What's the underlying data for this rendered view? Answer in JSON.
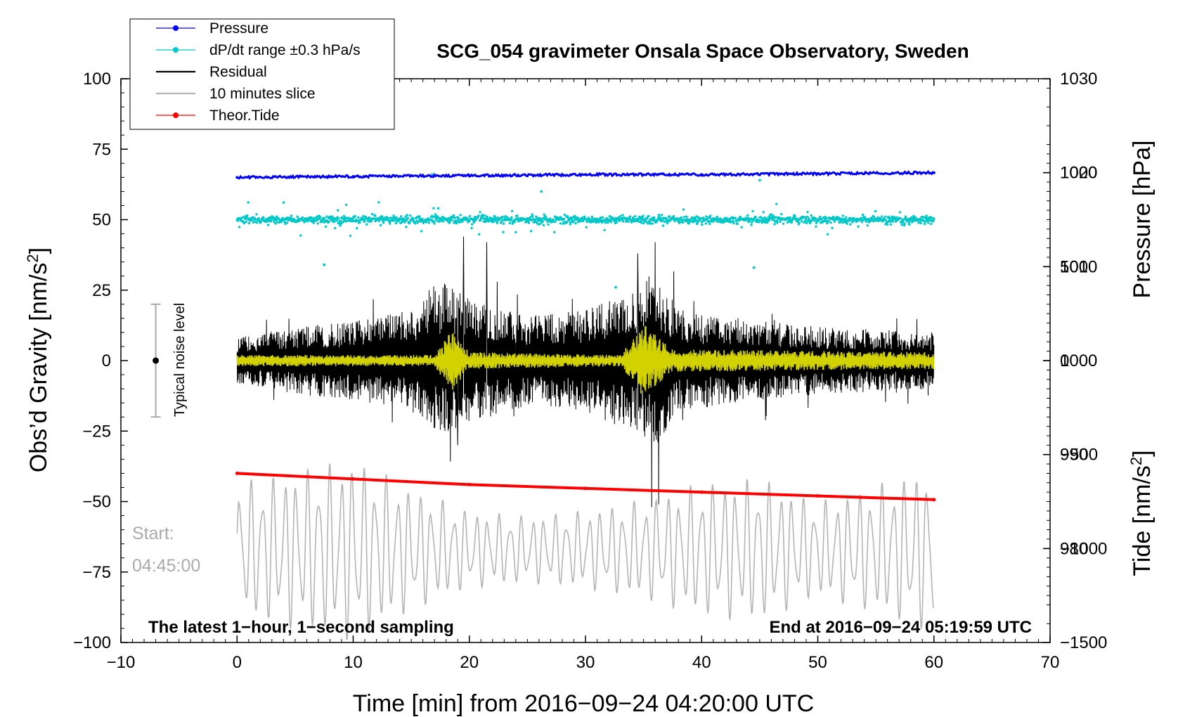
{
  "chart_data": {
    "type": "line",
    "title": "SCG_054 gravimeter Onsala Space Observatory, Sweden",
    "xlabel": "Time [min] from 2016−09−24 04:20:00 UTC",
    "ylabel_left": "Obs’d Gravity [nm/s²]",
    "ylabel_right_top": "Pressure [hPa]",
    "ylabel_right_bottom": "Tide [nm/s²]",
    "xlim": [
      -10,
      70
    ],
    "ylim_left": [
      -100,
      100
    ],
    "x_ticks": [
      "−10",
      "0",
      "10",
      "20",
      "30",
      "40",
      "50",
      "60",
      "70"
    ],
    "y_ticks_left": [
      "100",
      "75",
      "50",
      "25",
      "0",
      "−25",
      "−50",
      "−75",
      "−100"
    ],
    "pressure_axis": {
      "ylim": [
        970,
        1030
      ],
      "ticks": [
        "1030",
        "1020",
        "1010",
        "1000",
        "990",
        "980"
      ]
    },
    "tide_axis": {
      "ylim": [
        -1500,
        1500
      ],
      "ticks": [
        "1000",
        "500",
        "0",
        "−500",
        "−1000",
        "−1500"
      ]
    },
    "legend": [
      {
        "label": "Pressure",
        "color": "#0000ff",
        "marker": "dot"
      },
      {
        "label": "dP/dt range ±0.3 hPa/s",
        "color": "#00c8c8",
        "marker": "dot"
      },
      {
        "label": "Residual",
        "color": "#000000",
        "marker": "line"
      },
      {
        "label": "10 minutes slice",
        "color": "#b4b4b4",
        "marker": "line"
      },
      {
        "label": "Theor.Tide",
        "color": "#ff0000",
        "marker": "dot"
      }
    ],
    "series": [
      {
        "name": "Pressure",
        "axis": "pressure",
        "color": "#0000ff",
        "x": [
          0,
          10,
          20,
          30,
          40,
          50,
          60
        ],
        "values": [
          1019.5,
          1019.6,
          1019.7,
          1019.8,
          1019.8,
          1019.9,
          1020.0
        ]
      },
      {
        "name": "dP/dt range ±0.3 hPa/s",
        "axis": "left",
        "color": "#00c8c8",
        "center": 50,
        "typical_spread": 2,
        "outliers": [
          [
            16.8,
            66
          ],
          [
            7.5,
            34
          ],
          [
            44.5,
            33
          ],
          [
            32.6,
            26
          ],
          [
            26.2,
            60
          ],
          [
            45.0,
            64
          ]
        ]
      },
      {
        "name": "Residual",
        "axis": "left",
        "color": "#000000",
        "x_range": [
          0,
          60
        ],
        "envelope": [
          [
            0,
            8
          ],
          [
            5,
            12
          ],
          [
            10,
            14
          ],
          [
            15,
            18
          ],
          [
            18,
            28
          ],
          [
            20,
            22
          ],
          [
            25,
            16
          ],
          [
            30,
            18
          ],
          [
            34,
            26
          ],
          [
            36,
            32
          ],
          [
            38,
            18
          ],
          [
            45,
            14
          ],
          [
            50,
            12
          ],
          [
            55,
            11
          ],
          [
            60,
            10
          ]
        ],
        "extremes": [
          [
            19.5,
            44
          ],
          [
            21.5,
            42
          ],
          [
            36.0,
            42
          ],
          [
            35.7,
            -52
          ],
          [
            36.3,
            -51
          ],
          [
            34.5,
            38
          ],
          [
            19.0,
            -30
          ]
        ]
      },
      {
        "name": "Residual (smoothed)",
        "axis": "left",
        "color": "#d2d200",
        "x_range": [
          0,
          60
        ],
        "envelope": [
          [
            0,
            2
          ],
          [
            17,
            2
          ],
          [
            18.5,
            11
          ],
          [
            20,
            3
          ],
          [
            33,
            2
          ],
          [
            35,
            13
          ],
          [
            37.5,
            4
          ],
          [
            60,
            3
          ]
        ]
      },
      {
        "name": "10 minutes slice",
        "axis": "left",
        "color": "#b4b4b4",
        "start_label": "Start:",
        "start_time": "04:45:00",
        "envelope": [
          [
            0,
            24
          ],
          [
            10,
            33
          ],
          [
            15,
            22
          ],
          [
            20,
            14
          ],
          [
            25,
            12
          ],
          [
            30,
            14
          ],
          [
            35,
            18
          ],
          [
            40,
            24
          ],
          [
            45,
            26
          ],
          [
            50,
            17
          ],
          [
            55,
            23
          ],
          [
            60,
            30
          ]
        ]
      },
      {
        "name": "Theor.Tide",
        "axis": "tide",
        "color": "#ff0000",
        "x": [
          0,
          10,
          20,
          30,
          40,
          50,
          60
        ],
        "values": [
          -600,
          -630,
          -660,
          -680,
          -700,
          -720,
          -740
        ]
      }
    ],
    "annotations": {
      "bottom_left": "The latest 1−hour, 1−second sampling",
      "bottom_right": "End at 2016−09−24 05:19:59 UTC",
      "noise_label": "Typical noise level",
      "noise_range": [
        -20,
        20
      ]
    }
  }
}
